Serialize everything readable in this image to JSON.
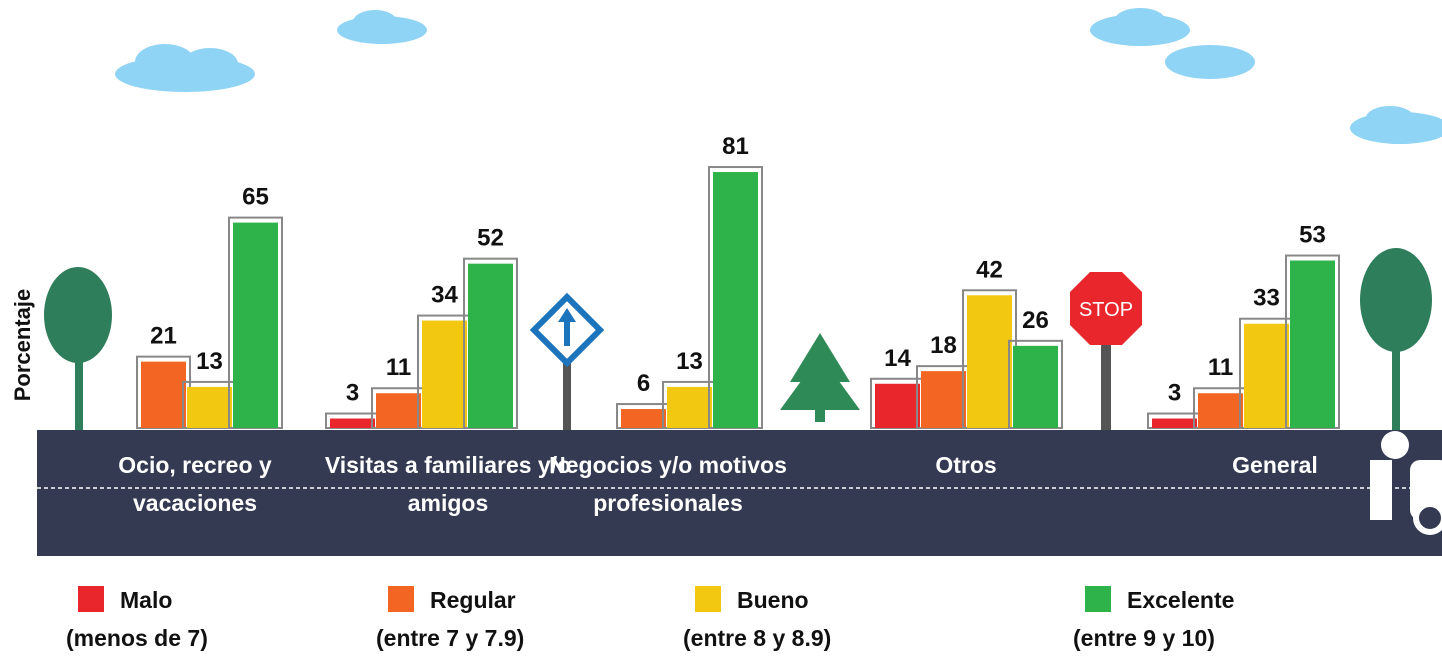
{
  "chart_data": {
    "type": "bar",
    "y_label": "Porcentaje",
    "categories": [
      "Ocio, recreo y vacaciones",
      "Visitas a familiares y/o amigos",
      "Negocios y/o motivos profesionales",
      "Otros",
      "General"
    ],
    "series": [
      {
        "name": "Malo",
        "description": "(menos de 7)",
        "color": "#e8262c",
        "values": [
          null,
          3,
          null,
          14,
          3
        ]
      },
      {
        "name": "Regular",
        "description": "(entre 7 y 7.9)",
        "color": "#f26522",
        "values": [
          21,
          11,
          6,
          18,
          11
        ]
      },
      {
        "name": "Bueno",
        "description": "(entre 8 y 8.9)",
        "color": "#f2c811",
        "values": [
          13,
          34,
          13,
          42,
          33
        ]
      },
      {
        "name": "Excelente",
        "description": "(entre 9 y 10)",
        "color": "#2db34a",
        "values": [
          65,
          52,
          81,
          26,
          53
        ]
      }
    ]
  }
}
